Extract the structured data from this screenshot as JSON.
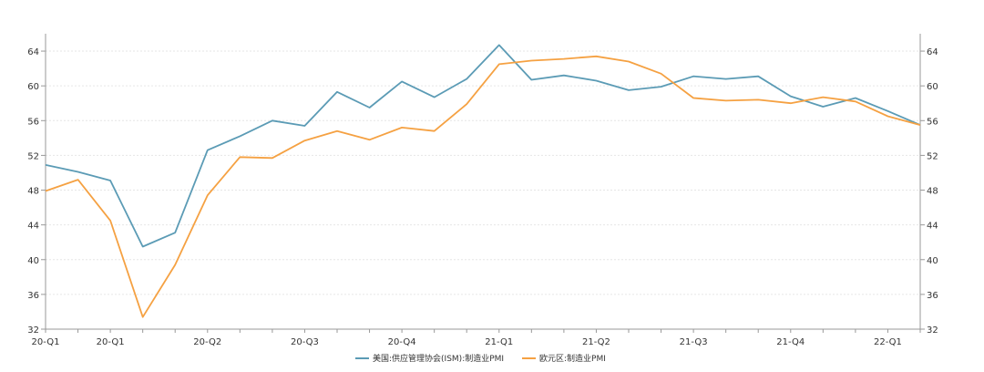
{
  "chart_data": {
    "type": "line",
    "x_labels": [
      "20-Q1",
      "20-Q1",
      "20-Q2",
      "20-Q3",
      "20-Q4",
      "21-Q1",
      "21-Q2",
      "21-Q3",
      "21-Q4",
      "22-Q1"
    ],
    "y_ticks": [
      32,
      36,
      40,
      44,
      48,
      52,
      56,
      60,
      64
    ],
    "ylim": [
      32,
      66
    ],
    "grid": true,
    "legend_position": "bottom-center",
    "series": [
      {
        "name": "美国:供应管理协会(ISM):制造业PMI",
        "color": "#5b9bb5",
        "values": [
          50.9,
          50.1,
          49.1,
          41.5,
          43.1,
          52.6,
          54.2,
          56.0,
          55.4,
          59.3,
          57.5,
          60.5,
          58.7,
          60.8,
          64.7,
          60.7,
          61.2,
          60.6,
          59.5,
          59.9,
          61.1,
          60.8,
          61.1,
          58.8,
          57.6,
          58.6,
          57.1,
          55.5
        ]
      },
      {
        "name": "欧元区:制造业PMI",
        "color": "#f5a142",
        "values": [
          47.9,
          49.2,
          44.5,
          33.4,
          39.4,
          47.4,
          51.8,
          51.7,
          53.7,
          54.8,
          53.8,
          55.2,
          54.8,
          57.9,
          62.5,
          62.9,
          63.1,
          63.4,
          62.8,
          61.4,
          58.6,
          58.3,
          58.4,
          58.0,
          58.7,
          58.2,
          56.5,
          55.5
        ]
      }
    ]
  }
}
